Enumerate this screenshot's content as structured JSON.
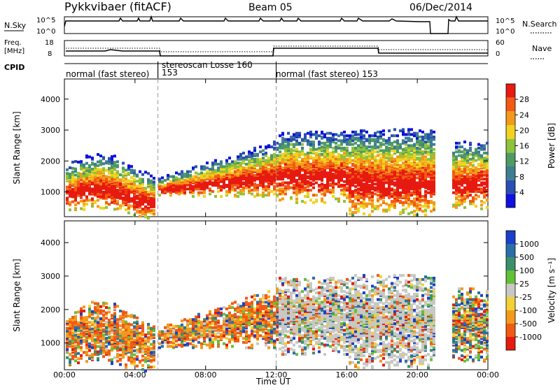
{
  "header": {
    "station": "Pykkvibaer (fitACF)",
    "beam": "Beam 05",
    "date": "06/Dec/2014"
  },
  "top_panels": {
    "nsky_label": "N.Sky",
    "nsky_top_tick": "10^5",
    "nsky_bottom_tick": "10^0",
    "nsearch_label": "N.Search",
    "nsearch_top_tick": "10^5",
    "nsearch_bottom_tick": "10^0",
    "freq_label_line1": "Freq.",
    "freq_label_line2": "[MHz]",
    "freq_top_tick": "18",
    "freq_bottom_tick": "8",
    "nave_label": "Nave",
    "nave_top_tick": "60",
    "nave_bottom_tick": "0",
    "cpid_label": "CPID",
    "cpid_segments": [
      {
        "label": "normal (fast stereo)",
        "start_h": 0.0,
        "end_h": 5.3
      },
      {
        "label": "153",
        "start_h": 5.3,
        "end_h": 5.3
      },
      {
        "label": "stereoscan Losse 160",
        "start_h": 5.3,
        "end_h": 12.0
      },
      {
        "label": "normal (fast stereo) 153",
        "start_h": 12.0,
        "end_h": 24.0
      }
    ]
  },
  "chart_data": [
    {
      "type": "heatmap",
      "name": "power",
      "ylabel": "Slant Range [km]",
      "xlabel": "Time UT",
      "x_ticks": [
        "00:00",
        "04:00",
        "08:00",
        "12:00",
        "16:00",
        "20:00",
        "00:00"
      ],
      "xlim_hours": [
        0,
        24
      ],
      "y_ticks": [
        1000,
        2000,
        3000,
        4000
      ],
      "ylim": [
        200,
        4650
      ],
      "colorbar": {
        "label": "Power [dB]",
        "ticks": [
          4,
          8,
          12,
          16,
          20,
          24,
          28
        ],
        "range": [
          0,
          32
        ],
        "colors": [
          "#1010e0",
          "#2a4fb0",
          "#3f7d93",
          "#4f9a64",
          "#8fc23a",
          "#f1d21f",
          "#f39a1c",
          "#f25a14",
          "#e61a10"
        ]
      },
      "cpid_boundaries_h": [
        5.3,
        12.0
      ]
    },
    {
      "type": "heatmap",
      "name": "velocity",
      "ylabel": "Slant Range [km]",
      "xlabel": "Time UT",
      "x_ticks": [
        "00:00",
        "04:00",
        "08:00",
        "12:00",
        "16:00",
        "20:00",
        "00:00"
      ],
      "xlim_hours": [
        0,
        24
      ],
      "y_ticks": [
        1000,
        2000,
        3000,
        4000
      ],
      "ylim": [
        200,
        4650
      ],
      "colorbar": {
        "label": "Velocity [m s⁻¹]",
        "ticks": [
          "1000",
          "500",
          "100",
          "25",
          "-25",
          "-100",
          "-500",
          "-1000"
        ],
        "colors": [
          "#1a3fc9",
          "#2a6fa8",
          "#3c8f6a",
          "#63c039",
          "#c8c8c4",
          "#f3d035",
          "#f39a1c",
          "#f25a14",
          "#e61a10"
        ]
      },
      "cpid_boundaries_h": [
        5.3,
        12.0
      ]
    }
  ]
}
